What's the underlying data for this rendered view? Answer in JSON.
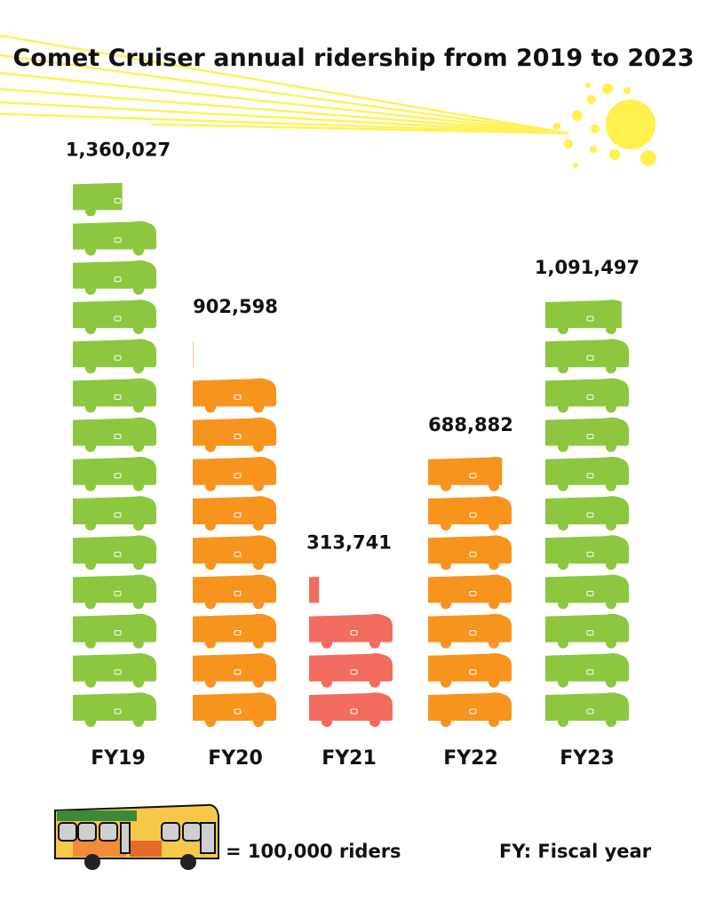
{
  "chart_data": {
    "type": "bar",
    "title": "Comet Cruiser annual ridership from 2019 to 2023",
    "categories": [
      "FY19",
      "FY20",
      "FY21",
      "FY22",
      "FY23"
    ],
    "values": [
      1360027,
      902598,
      313741,
      688882,
      1091497
    ],
    "value_labels": [
      "1,360,027",
      "902,598",
      "313,741",
      "688,882",
      "1,091,497"
    ],
    "unit_per_icon": 100000,
    "bar_colors": [
      "#8dc63f",
      "#f7941d",
      "#f26c5f",
      "#f7941d",
      "#8dc63f"
    ],
    "legend": {
      "icon_label": "= 100,000 riders",
      "note": "FY: Fiscal year"
    }
  },
  "colors": {
    "sun": "#fff04d",
    "bus_badge": "#ffffff"
  }
}
